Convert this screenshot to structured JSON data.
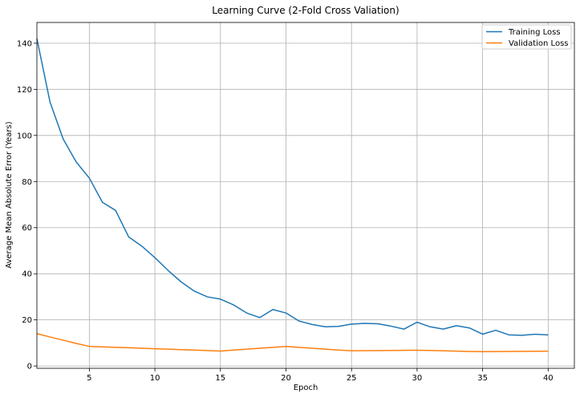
{
  "chart_data": {
    "type": "line",
    "title": "Learning Curve (2-Fold Cross Valiation)",
    "xlabel": "Epoch",
    "ylabel": "Average Mean Absolute Error (Years)",
    "xlim": [
      1,
      42
    ],
    "ylim": [
      -1,
      149
    ],
    "xticks": [
      5,
      10,
      15,
      20,
      25,
      30,
      35,
      40
    ],
    "yticks": [
      0,
      20,
      40,
      60,
      80,
      100,
      120,
      140
    ],
    "grid": true,
    "legend_position": "top-right",
    "x": [
      1,
      2,
      3,
      4,
      5,
      6,
      7,
      8,
      9,
      10,
      11,
      12,
      13,
      14,
      15,
      16,
      17,
      18,
      19,
      20,
      21,
      22,
      23,
      24,
      25,
      26,
      27,
      28,
      29,
      30,
      31,
      32,
      33,
      34,
      35,
      36,
      37,
      38,
      39,
      40
    ],
    "series": [
      {
        "name": "Training Loss",
        "color": "#1f77b4",
        "values": [
          142.0,
          114.5,
          98.5,
          88.5,
          81.5,
          71.0,
          67.5,
          56.0,
          52.0,
          47.0,
          41.5,
          36.5,
          32.5,
          30.0,
          29.0,
          26.5,
          23.0,
          21.0,
          24.5,
          23.0,
          19.5,
          18.0,
          17.0,
          17.2,
          18.2,
          18.5,
          18.3,
          17.3,
          16.0,
          19.0,
          17.0,
          16.0,
          17.5,
          16.5,
          13.8,
          15.5,
          13.5,
          13.3,
          13.8,
          13.5
        ]
      },
      {
        "name": "Validation Loss",
        "color": "#ff7f0e",
        "values": [
          14.0,
          12.6,
          11.2,
          9.8,
          8.5,
          8.3,
          8.1,
          7.9,
          7.7,
          7.5,
          7.3,
          7.1,
          6.9,
          6.7,
          6.5,
          6.9,
          7.3,
          7.7,
          8.1,
          8.5,
          8.1,
          7.7,
          7.3,
          6.9,
          6.6,
          6.65,
          6.7,
          6.75,
          6.8,
          6.85,
          6.75,
          6.6,
          6.45,
          6.3,
          6.2,
          6.25,
          6.3,
          6.35,
          6.4,
          6.45
        ]
      }
    ]
  }
}
